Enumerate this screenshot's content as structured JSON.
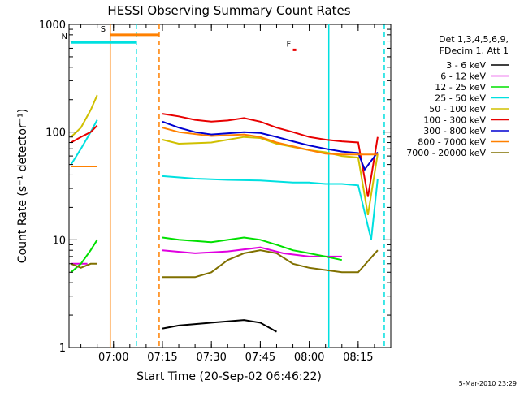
{
  "chart_data": {
    "type": "line",
    "title": "HESSI Observing Summary Count Rates",
    "xlabel": "Start Time (20-Sep-02 06:46:22)",
    "ylabel": "Count Rate (s⁻¹ detector⁻¹)",
    "yscale": "log",
    "ylim": [
      1,
      1000
    ],
    "xlim": [
      "06:46:22",
      "08:25:00"
    ],
    "grid": false,
    "legend_position": "right",
    "x_ticks": [
      "07:00",
      "07:15",
      "07:30",
      "07:45",
      "08:00",
      "08:15"
    ],
    "y_ticks": [
      "1",
      "10",
      "100",
      "1000"
    ],
    "detector_info": [
      "Det 1,3,4,5,6,9,",
      "FDecim 1, Att 1"
    ],
    "footer_date": "5-Mar-2010 23:29",
    "colors": {
      "3-6": "#000000",
      "6-12": "#e000e0",
      "12-25": "#00e000",
      "25-50": "#00e0e0",
      "50-100": "#d0c000",
      "100-300": "#e80000",
      "300-800": "#0000d0",
      "800-7000": "#ff8000",
      "7000-20000": "#807000"
    },
    "series": [
      {
        "name": "3 - 6 keV",
        "key": "3-6",
        "segments": [
          {
            "x": [
              "07:15",
              "07:20",
              "07:30",
              "07:40",
              "07:45",
              "07:50"
            ],
            "y": [
              1.5,
              1.6,
              1.7,
              1.8,
              1.7,
              1.4
            ]
          }
        ]
      },
      {
        "name": "6 - 12 keV",
        "key": "6-12",
        "segments": [
          {
            "x": [
              "06:47",
              "06:52"
            ],
            "y": [
              6,
              6
            ]
          },
          {
            "x": [
              "07:15",
              "07:25",
              "07:35",
              "07:45",
              "07:52",
              "08:00",
              "08:05",
              "08:10"
            ],
            "y": [
              8,
              7.5,
              7.8,
              8.5,
              7.5,
              7,
              7,
              7
            ]
          }
        ]
      },
      {
        "name": "12 - 25 keV",
        "key": "12-25",
        "segments": [
          {
            "x": [
              "06:47",
              "06:50",
              "06:53",
              "06:55"
            ],
            "y": [
              5,
              6,
              8,
              10
            ]
          },
          {
            "x": [
              "07:15",
              "07:20",
              "07:30",
              "07:40",
              "07:45",
              "07:50",
              "07:55",
              "08:00",
              "08:05",
              "08:10"
            ],
            "y": [
              10.5,
              10,
              9.5,
              10.5,
              10,
              9,
              8,
              7.5,
              7,
              6.5
            ]
          }
        ]
      },
      {
        "name": "25 - 50 keV",
        "key": "25-50",
        "segments": [
          {
            "x": [
              "06:47",
              "06:50",
              "06:53",
              "06:55"
            ],
            "y": [
              50,
              70,
              100,
              130
            ]
          },
          {
            "x": [
              "07:15",
              "07:25",
              "07:35",
              "07:45",
              "07:55",
              "08:00",
              "08:05",
              "08:10",
              "08:15",
              "08:19",
              "08:21"
            ],
            "y": [
              39,
              37,
              36,
              35.5,
              34,
              34,
              33,
              33,
              32,
              10,
              37
            ]
          }
        ]
      },
      {
        "name": "50 - 100 keV",
        "key": "50-100",
        "segments": [
          {
            "x": [
              "06:47",
              "06:50",
              "06:53",
              "06:55"
            ],
            "y": [
              90,
              110,
              160,
              220
            ]
          },
          {
            "x": [
              "07:15",
              "07:20",
              "07:30",
              "07:40",
              "07:45",
              "07:50",
              "08:00",
              "08:05",
              "08:10",
              "08:15",
              "08:18",
              "08:21"
            ],
            "y": [
              85,
              78,
              80,
              90,
              88,
              78,
              68,
              65,
              60,
              58,
              17,
              63
            ]
          }
        ]
      },
      {
        "name": "100 - 300 keV",
        "key": "100-300",
        "segments": [
          {
            "x": [
              "06:47",
              "06:50",
              "06:53",
              "06:55"
            ],
            "y": [
              80,
              90,
              100,
              115
            ]
          },
          {
            "x": [
              "07:15",
              "07:20",
              "07:25",
              "07:30",
              "07:35",
              "07:40",
              "07:45",
              "07:50",
              "07:55",
              "08:00",
              "08:05",
              "08:10",
              "08:15",
              "08:18",
              "08:21"
            ],
            "y": [
              148,
              140,
              130,
              125,
              128,
              135,
              125,
              110,
              100,
              90,
              85,
              82,
              80,
              25,
              90
            ]
          }
        ]
      },
      {
        "name": "300 - 800 keV",
        "key": "300-800",
        "segments": [
          {
            "x": [
              "06:47",
              "06:55"
            ],
            "y": [
              48,
              48
            ]
          },
          {
            "x": [
              "07:15",
              "07:20",
              "07:25",
              "07:30",
              "07:40",
              "07:45",
              "07:50",
              "07:55",
              "08:00",
              "08:05",
              "08:10",
              "08:15",
              "08:17",
              "08:21"
            ],
            "y": [
              125,
              110,
              100,
              95,
              100,
              98,
              90,
              82,
              75,
              70,
              66,
              64,
              45,
              65
            ]
          }
        ]
      },
      {
        "name": "800 - 7000 keV",
        "key": "800-7000",
        "segments": [
          {
            "x": [
              "06:47",
              "06:55"
            ],
            "y": [
              48,
              48
            ]
          },
          {
            "x": [
              "07:15",
              "07:20",
              "07:30",
              "07:40",
              "07:45",
              "07:50",
              "08:00",
              "08:05",
              "08:10",
              "08:15",
              "08:21"
            ],
            "y": [
              110,
              100,
              92,
              95,
              90,
              80,
              68,
              63,
              62,
              62,
              62
            ]
          }
        ]
      },
      {
        "name": "7000 - 20000 keV",
        "key": "7000-20000",
        "segments": [
          {
            "x": [
              "06:47",
              "06:50",
              "06:53",
              "06:55"
            ],
            "y": [
              6,
              5.5,
              6,
              6
            ]
          },
          {
            "x": [
              "07:15",
              "07:25",
              "07:30",
              "07:35",
              "07:40",
              "07:45",
              "07:50",
              "07:55",
              "08:00",
              "08:10",
              "08:15",
              "08:21"
            ],
            "y": [
              4.5,
              4.5,
              5,
              6.5,
              7.5,
              8,
              7.5,
              6,
              5.5,
              5,
              5,
              8
            ]
          }
        ]
      }
    ],
    "annotations": [
      {
        "label": "S",
        "color": "#ff8000",
        "x": [
          "06:59",
          "07:14"
        ],
        "y": 800
      },
      {
        "label": "N",
        "color": "#00e0e0",
        "x": [
          "06:47",
          "07:07"
        ],
        "y": 680
      },
      {
        "label": "F",
        "color": "#e80000",
        "x": [
          "07:55",
          "07:56"
        ],
        "y": 580
      }
    ],
    "markers": [
      {
        "x": "06:59",
        "color": "#ff8000",
        "style": "solid"
      },
      {
        "x": "07:14",
        "color": "#ff8000",
        "style": "dashed"
      },
      {
        "x": "07:07",
        "color": "#00e0e0",
        "style": "dashed"
      },
      {
        "x": "08:06",
        "color": "#00e0e0",
        "style": "solid"
      },
      {
        "x": "08:23",
        "color": "#00e0e0",
        "style": "dashed"
      }
    ]
  }
}
